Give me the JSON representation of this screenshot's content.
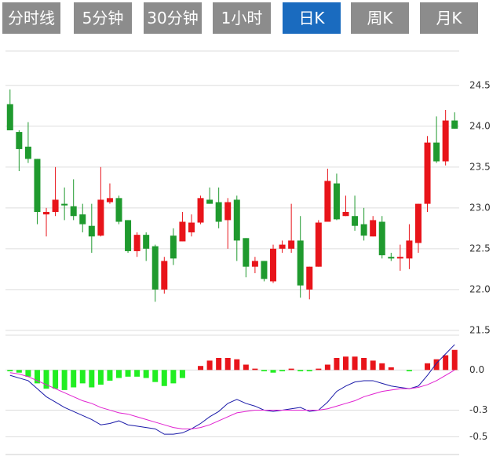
{
  "tabs": [
    "分时线",
    "5分钟",
    "30分钟",
    "1小时",
    "日K",
    "周K",
    "月K"
  ],
  "active_tab": 4,
  "chart_data": [
    {
      "type": "candlestick",
      "up_color": "#e8141a",
      "down_color": "#1f9a2e",
      "open": [
        24.27,
        23.93,
        23.75,
        23.6,
        22.92,
        22.95,
        23.05,
        23.02,
        22.92,
        22.78,
        22.66,
        23.07,
        23.12,
        22.85,
        22.47,
        22.67,
        22.53,
        22.0,
        22.66,
        22.59,
        22.7,
        22.82,
        23.1,
        23.07,
        22.85,
        23.1,
        22.63,
        22.28,
        22.35,
        22.1,
        22.5,
        22.5,
        22.6,
        22.0,
        22.28,
        22.83,
        23.3,
        22.9,
        22.9,
        22.8,
        22.65,
        22.83,
        22.4,
        22.38,
        22.38,
        22.57,
        23.05,
        23.8,
        23.57,
        24.07
      ],
      "high": [
        24.45,
        23.95,
        24.05,
        23.6,
        23.0,
        23.5,
        23.25,
        23.35,
        23.05,
        23.05,
        23.5,
        23.3,
        23.15,
        22.85,
        22.7,
        22.7,
        22.55,
        22.4,
        22.75,
        22.95,
        22.92,
        23.15,
        23.25,
        23.25,
        23.12,
        23.15,
        22.63,
        22.4,
        22.35,
        22.55,
        22.6,
        23.05,
        22.9,
        22.28,
        22.85,
        23.48,
        23.42,
        23.15,
        23.15,
        23.0,
        22.9,
        22.9,
        22.45,
        22.55,
        22.8,
        23.05,
        23.88,
        24.12,
        24.2,
        24.17
      ],
      "low": [
        23.95,
        23.45,
        23.55,
        22.8,
        22.65,
        22.9,
        22.85,
        22.85,
        22.7,
        22.45,
        22.65,
        23.05,
        22.8,
        22.45,
        22.4,
        22.35,
        21.85,
        21.95,
        22.3,
        22.59,
        22.65,
        22.8,
        23.05,
        22.75,
        22.5,
        22.35,
        22.15,
        22.2,
        22.1,
        22.08,
        22.45,
        22.45,
        21.9,
        21.88,
        22.28,
        22.83,
        22.85,
        22.9,
        22.72,
        22.6,
        22.65,
        22.38,
        22.35,
        22.23,
        22.25,
        22.45,
        22.95,
        23.55,
        23.52,
        23.97
      ],
      "close": [
        23.95,
        23.72,
        23.6,
        22.95,
        22.95,
        23.1,
        23.03,
        22.9,
        22.8,
        22.65,
        23.1,
        23.12,
        22.83,
        22.47,
        22.67,
        22.5,
        22.0,
        22.35,
        22.38,
        22.83,
        22.82,
        23.12,
        23.05,
        22.83,
        23.07,
        22.6,
        22.28,
        22.35,
        22.13,
        22.5,
        22.55,
        22.6,
        22.05,
        22.28,
        22.82,
        23.33,
        22.86,
        22.95,
        22.78,
        22.66,
        22.85,
        22.42,
        22.38,
        22.4,
        22.6,
        23.05,
        23.8,
        23.57,
        24.07,
        23.97
      ],
      "ylim": [
        21.46,
        24.95
      ],
      "yticks": [
        24.5,
        {
          "value": 24,
          "label": "24.0"
        },
        23.5,
        {
          "value": 23,
          "label": "23.0"
        },
        22.5,
        {
          "value": 22,
          "label": "22.0"
        },
        21.5
      ],
      "grid": true
    },
    {
      "type": "macd",
      "up_color": "#e8141a",
      "down_color": "#22ee22",
      "histogram": [
        -0.01,
        -0.02,
        -0.05,
        -0.1,
        -0.14,
        -0.14,
        -0.15,
        -0.13,
        -0.1,
        -0.13,
        -0.11,
        -0.08,
        -0.06,
        -0.05,
        -0.05,
        -0.06,
        -0.09,
        -0.12,
        -0.1,
        -0.06,
        0.0,
        0.03,
        0.07,
        0.09,
        0.09,
        0.08,
        0.04,
        0.01,
        -0.01,
        -0.02,
        -0.01,
        0.01,
        -0.01,
        -0.01,
        0.01,
        0.04,
        0.09,
        0.1,
        0.1,
        0.09,
        0.07,
        0.05,
        0.02,
        0.0,
        -0.01,
        0.0,
        0.05,
        0.08,
        0.11,
        0.15
      ],
      "series": [
        {
          "color": "#1a1aa8",
          "values": [
            -0.04,
            -0.06,
            -0.08,
            -0.14,
            -0.2,
            -0.24,
            -0.28,
            -0.31,
            -0.34,
            -0.37,
            -0.41,
            -0.4,
            -0.38,
            -0.41,
            -0.42,
            -0.43,
            -0.44,
            -0.48,
            -0.48,
            -0.47,
            -0.44,
            -0.4,
            -0.35,
            -0.31,
            -0.25,
            -0.22,
            -0.25,
            -0.27,
            -0.3,
            -0.31,
            -0.3,
            -0.29,
            -0.28,
            -0.31,
            -0.3,
            -0.24,
            -0.16,
            -0.12,
            -0.09,
            -0.08,
            -0.08,
            -0.1,
            -0.12,
            -0.13,
            -0.14,
            -0.12,
            -0.04,
            0.05,
            0.12,
            0.19
          ]
        },
        {
          "color": "#e020d0",
          "values": [
            -0.02,
            -0.03,
            -0.05,
            -0.08,
            -0.11,
            -0.14,
            -0.17,
            -0.2,
            -0.23,
            -0.25,
            -0.28,
            -0.3,
            -0.32,
            -0.33,
            -0.35,
            -0.37,
            -0.39,
            -0.41,
            -0.43,
            -0.44,
            -0.44,
            -0.43,
            -0.41,
            -0.38,
            -0.35,
            -0.32,
            -0.31,
            -0.3,
            -0.3,
            -0.3,
            -0.3,
            -0.3,
            -0.3,
            -0.3,
            -0.3,
            -0.29,
            -0.27,
            -0.25,
            -0.23,
            -0.2,
            -0.18,
            -0.16,
            -0.15,
            -0.14,
            -0.14,
            -0.13,
            -0.11,
            -0.08,
            -0.04,
            0.0
          ]
        }
      ],
      "ylim": [
        -0.62,
        0.26
      ],
      "yticks": [
        {
          "value": 0,
          "label": "0.0"
        },
        -0.3,
        -0.5
      ],
      "grid": true
    }
  ]
}
